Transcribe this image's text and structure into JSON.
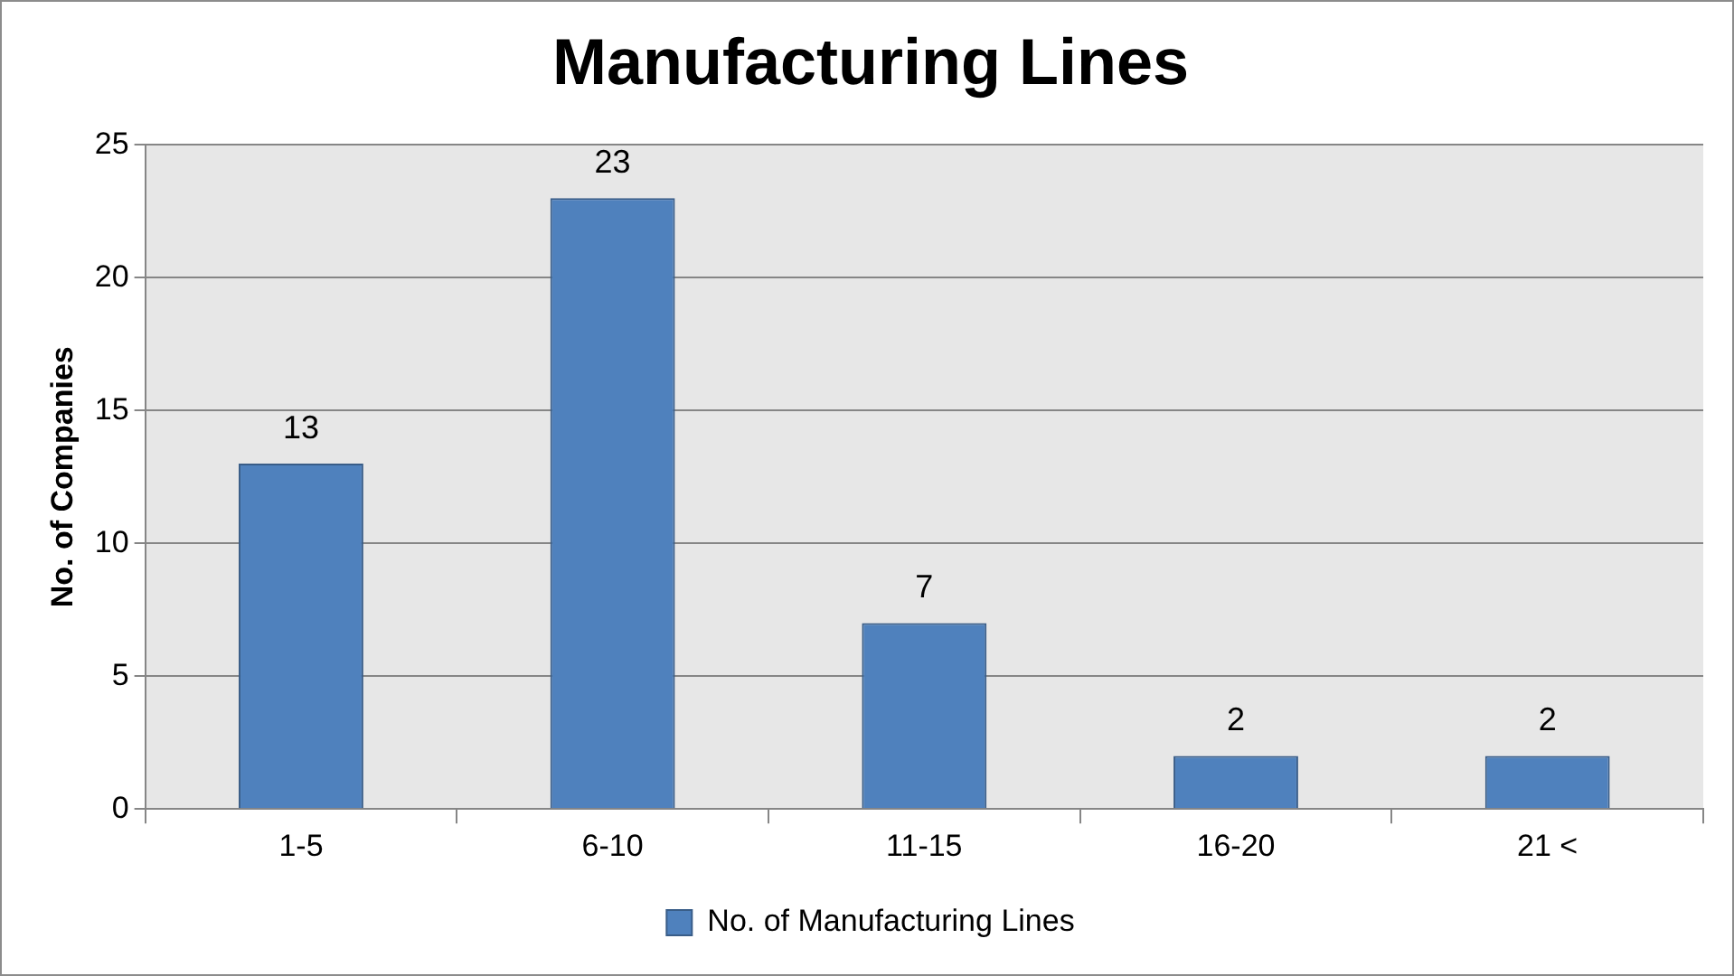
{
  "chart_data": {
    "type": "bar",
    "title": "Manufacturing Lines",
    "ylabel": "No. of Companies",
    "categories": [
      "1-5",
      "6-10",
      "11-15",
      "16-20",
      "21 <"
    ],
    "series": [
      {
        "name": "No. of Manufacturing Lines",
        "color": "#4f81bd",
        "values": [
          13,
          23,
          7,
          2,
          2
        ]
      }
    ],
    "ylim": [
      0,
      25
    ],
    "yticks": [
      0,
      5,
      10,
      15,
      20,
      25
    ],
    "grid": "y",
    "legend": "bottom",
    "data_labels": true
  }
}
